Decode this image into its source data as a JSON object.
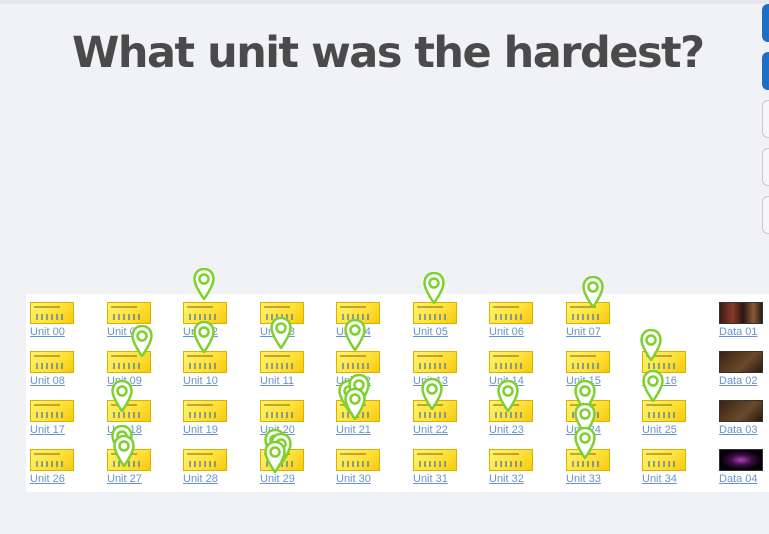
{
  "title": "What unit was the hardest?",
  "colors": {
    "accent": "#1d6fc5",
    "pin": "#7dd12c",
    "link": "#6a93c9"
  },
  "side_tabs": [
    {
      "name": "side-tab-1",
      "state": "active"
    },
    {
      "name": "side-tab-2",
      "state": "active"
    },
    {
      "name": "side-tab-3",
      "state": "plain"
    },
    {
      "name": "side-tab-4",
      "state": "plain"
    },
    {
      "name": "side-tab-5",
      "state": "plain"
    }
  ],
  "units": [
    {
      "label": "Unit 00",
      "row": 0,
      "col": 0
    },
    {
      "label": "Unit 01",
      "row": 0,
      "col": 1
    },
    {
      "label": "Unit 02",
      "row": 0,
      "col": 2
    },
    {
      "label": "Unit 03",
      "row": 0,
      "col": 3
    },
    {
      "label": "Unit 04",
      "row": 0,
      "col": 4
    },
    {
      "label": "Unit 05",
      "row": 0,
      "col": 5
    },
    {
      "label": "Unit 06",
      "row": 0,
      "col": 6
    },
    {
      "label": "Unit 07",
      "row": 0,
      "col": 7
    },
    {
      "label": "Data 01",
      "row": 0,
      "col": 9,
      "thumb": "photo"
    },
    {
      "label": "Unit 08",
      "row": 1,
      "col": 0
    },
    {
      "label": "Unit 09",
      "row": 1,
      "col": 1
    },
    {
      "label": "Unit 10",
      "row": 1,
      "col": 2
    },
    {
      "label": "Unit 11",
      "row": 1,
      "col": 3
    },
    {
      "label": "Unit 12",
      "row": 1,
      "col": 4
    },
    {
      "label": "Unit 13",
      "row": 1,
      "col": 5
    },
    {
      "label": "Unit 14",
      "row": 1,
      "col": 6
    },
    {
      "label": "Unit 15",
      "row": 1,
      "col": 7
    },
    {
      "label": "Unit 16",
      "row": 1,
      "col": 8
    },
    {
      "label": "Data 02",
      "row": 1,
      "col": 9,
      "thumb": "dark"
    },
    {
      "label": "Unit 17",
      "row": 2,
      "col": 0
    },
    {
      "label": "Unit 18",
      "row": 2,
      "col": 1
    },
    {
      "label": "Unit 19",
      "row": 2,
      "col": 2
    },
    {
      "label": "Unit 20",
      "row": 2,
      "col": 3
    },
    {
      "label": "Unit 21",
      "row": 2,
      "col": 4
    },
    {
      "label": "Unit 22",
      "row": 2,
      "col": 5
    },
    {
      "label": "Unit 23",
      "row": 2,
      "col": 6
    },
    {
      "label": "Unit 24",
      "row": 2,
      "col": 7
    },
    {
      "label": "Unit 25",
      "row": 2,
      "col": 8
    },
    {
      "label": "Data 03",
      "row": 2,
      "col": 9,
      "thumb": "dark"
    },
    {
      "label": "Unit 26",
      "row": 3,
      "col": 0
    },
    {
      "label": "Unit 27",
      "row": 3,
      "col": 1
    },
    {
      "label": "Unit 28",
      "row": 3,
      "col": 2
    },
    {
      "label": "Unit 29",
      "row": 3,
      "col": 3
    },
    {
      "label": "Unit 30",
      "row": 3,
      "col": 4
    },
    {
      "label": "Unit 31",
      "row": 3,
      "col": 5
    },
    {
      "label": "Unit 32",
      "row": 3,
      "col": 6
    },
    {
      "label": "Unit 33",
      "row": 3,
      "col": 7
    },
    {
      "label": "Unit 34",
      "row": 3,
      "col": 8
    },
    {
      "label": "Data 04",
      "row": 3,
      "col": 9,
      "thumb": "purple"
    }
  ],
  "pin_icon": "map-pin-icon",
  "pins": [
    {
      "unit": "Unit 02"
    },
    {
      "unit": "Unit 05"
    },
    {
      "unit": "Unit 07"
    },
    {
      "unit": "Unit 10"
    },
    {
      "unit": "Unit 11"
    },
    {
      "unit": "Unit 12"
    },
    {
      "unit": "Unit 16"
    },
    {
      "unit": "Unit 09"
    },
    {
      "unit": "Unit 25"
    },
    {
      "unit": "Unit 21"
    },
    {
      "unit": "Unit 21"
    },
    {
      "unit": "Unit 21"
    },
    {
      "unit": "Unit 22"
    },
    {
      "unit": "Unit 23"
    },
    {
      "unit": "Unit 24"
    },
    {
      "unit": "Unit 18"
    },
    {
      "unit": "Unit 29"
    },
    {
      "unit": "Unit 29"
    },
    {
      "unit": "Unit 29"
    },
    {
      "unit": "Unit 27"
    },
    {
      "unit": "Unit 27"
    },
    {
      "unit": "Unit 33"
    },
    {
      "unit": "Unit 33"
    }
  ]
}
